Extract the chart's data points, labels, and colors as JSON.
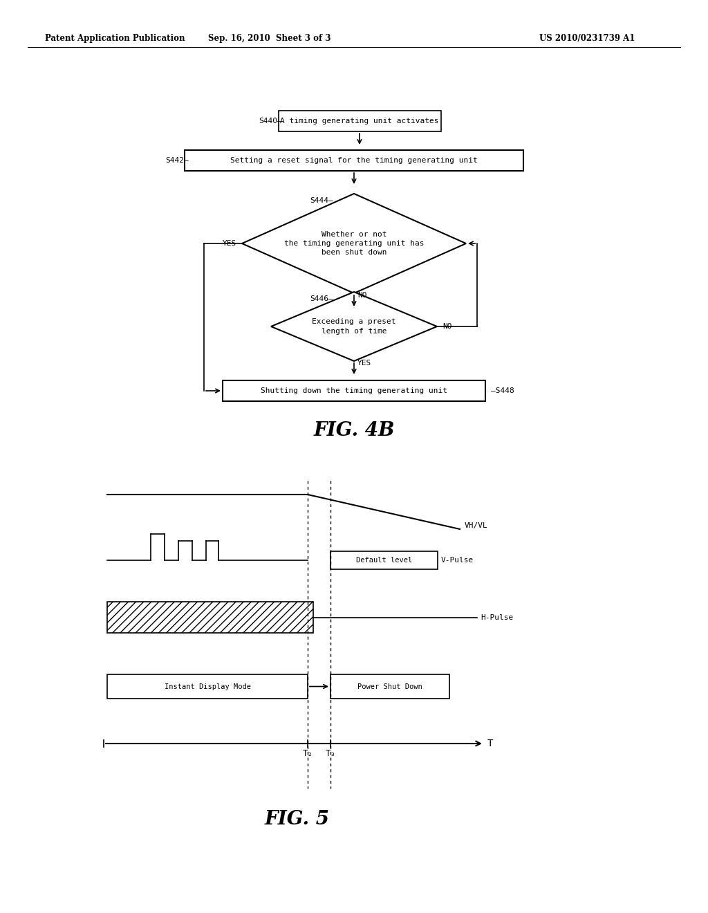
{
  "bg_color": "#ffffff",
  "header_left": "Patent Application Publication",
  "header_center": "Sep. 16, 2010  Sheet 3 of 3",
  "header_right": "US 2010/0231739 A1",
  "fig4b_title": "FIG. 4B",
  "fig5_title": "FIG. 5",
  "flowchart": {
    "s440_label": "S440",
    "s440_text": "A timing generating unit activates",
    "s442_label": "S442",
    "s442_text": "Setting a reset signal for the timing generating unit",
    "s444_label": "S444",
    "s444_text": "Whether or not\nthe timing generating unit has\nbeen shut down",
    "s446_label": "S446",
    "s446_text": "Exceeding a preset\nlength of time",
    "s448_label": "S448",
    "s448_text": "Shutting down the timing generating unit",
    "yes_label": "YES",
    "no_label": "NO"
  },
  "timing": {
    "vh_vl_label": "VH/VL",
    "vpulse_label": "V-Pulse",
    "hpulse_label": "H-Pulse",
    "t_label": "T",
    "t2_label": "T₂",
    "t3_label": "T₃",
    "instant_label": "Instant Display Mode",
    "shutdown_label": "Power Shut Down",
    "default_level_label": "Default level"
  }
}
